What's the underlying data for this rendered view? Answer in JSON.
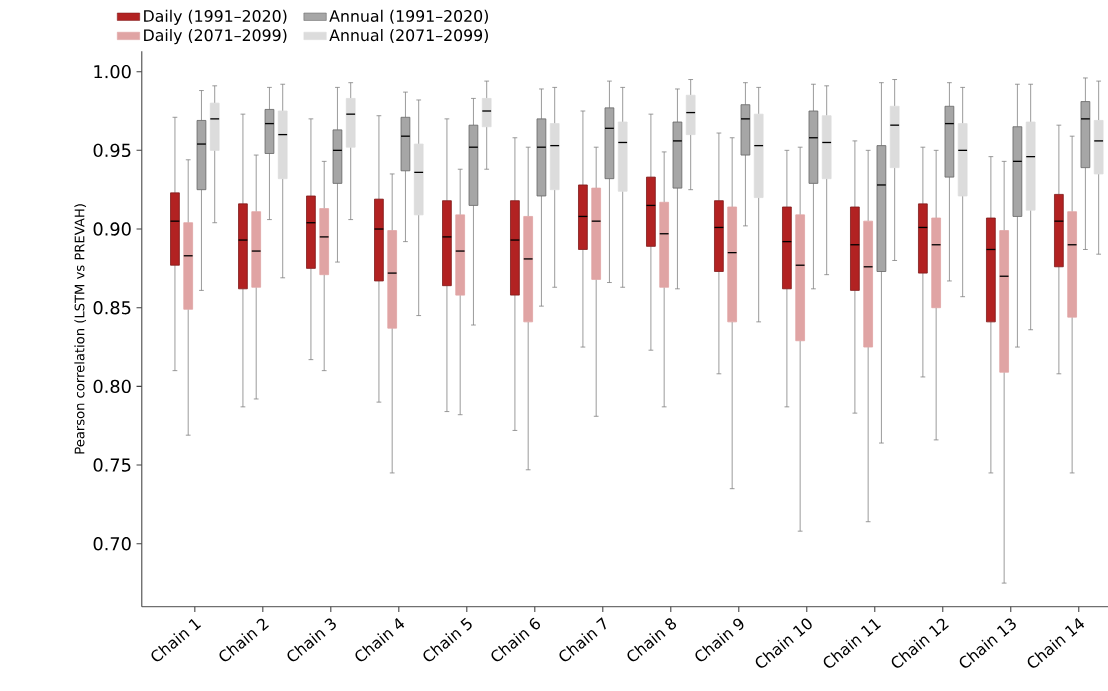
{
  "chart_data": {
    "type": "box",
    "ylabel": "Pearson correlation  (LSTM vs PREVAH)",
    "categories": [
      "Chain 1",
      "Chain 2",
      "Chain 3",
      "Chain 4",
      "Chain 5",
      "Chain 6",
      "Chain 7",
      "Chain 8",
      "Chain 9",
      "Chain 10",
      "Chain 11",
      "Chain 12",
      "Chain 13",
      "Chain 14"
    ],
    "ylim": [
      0.66,
      1.013
    ],
    "yticks": [
      {
        "value": 0.7,
        "label": "0.70"
      },
      {
        "value": 0.75,
        "label": "0.75"
      },
      {
        "value": 0.8,
        "label": "0.80"
      },
      {
        "value": 0.85,
        "label": "0.85"
      },
      {
        "value": 0.9,
        "label": "0.90"
      },
      {
        "value": 0.95,
        "label": "0.95"
      },
      {
        "value": 1.0,
        "label": "1.00"
      }
    ],
    "legend": "top left",
    "series": [
      {
        "name": "Daily (1991–2020)",
        "color": "#b22222",
        "boxes": [
          {
            "low": 0.81,
            "q1": 0.877,
            "median": 0.905,
            "q3": 0.923,
            "high": 0.971
          },
          {
            "low": 0.787,
            "q1": 0.862,
            "median": 0.893,
            "q3": 0.916,
            "high": 0.973
          },
          {
            "low": 0.817,
            "q1": 0.875,
            "median": 0.904,
            "q3": 0.921,
            "high": 0.97
          },
          {
            "low": 0.79,
            "q1": 0.867,
            "median": 0.9,
            "q3": 0.919,
            "high": 0.972
          },
          {
            "low": 0.784,
            "q1": 0.864,
            "median": 0.895,
            "q3": 0.918,
            "high": 0.97
          },
          {
            "low": 0.772,
            "q1": 0.858,
            "median": 0.893,
            "q3": 0.918,
            "high": 0.958
          },
          {
            "low": 0.825,
            "q1": 0.887,
            "median": 0.908,
            "q3": 0.928,
            "high": 0.975
          },
          {
            "low": 0.823,
            "q1": 0.889,
            "median": 0.915,
            "q3": 0.933,
            "high": 0.973
          },
          {
            "low": 0.808,
            "q1": 0.873,
            "median": 0.901,
            "q3": 0.918,
            "high": 0.961
          },
          {
            "low": 0.787,
            "q1": 0.862,
            "median": 0.892,
            "q3": 0.914,
            "high": 0.95
          },
          {
            "low": 0.783,
            "q1": 0.861,
            "median": 0.89,
            "q3": 0.914,
            "high": 0.956
          },
          {
            "low": 0.806,
            "q1": 0.872,
            "median": 0.901,
            "q3": 0.916,
            "high": 0.952
          },
          {
            "low": 0.745,
            "q1": 0.841,
            "median": 0.887,
            "q3": 0.907,
            "high": 0.946
          },
          {
            "low": 0.808,
            "q1": 0.876,
            "median": 0.905,
            "q3": 0.922,
            "high": 0.966
          }
        ]
      },
      {
        "name": "Daily (2071–2099)",
        "color": "#e0a4a4",
        "boxes": [
          {
            "low": 0.769,
            "q1": 0.849,
            "median": 0.883,
            "q3": 0.904,
            "high": 0.944
          },
          {
            "low": 0.792,
            "q1": 0.863,
            "median": 0.886,
            "q3": 0.911,
            "high": 0.947
          },
          {
            "low": 0.81,
            "q1": 0.871,
            "median": 0.895,
            "q3": 0.913,
            "high": 0.943
          },
          {
            "low": 0.745,
            "q1": 0.837,
            "median": 0.872,
            "q3": 0.899,
            "high": 0.935
          },
          {
            "low": 0.782,
            "q1": 0.858,
            "median": 0.886,
            "q3": 0.909,
            "high": 0.938
          },
          {
            "low": 0.747,
            "q1": 0.841,
            "median": 0.881,
            "q3": 0.908,
            "high": 0.952
          },
          {
            "low": 0.781,
            "q1": 0.868,
            "median": 0.905,
            "q3": 0.926,
            "high": 0.952
          },
          {
            "low": 0.787,
            "q1": 0.863,
            "median": 0.897,
            "q3": 0.917,
            "high": 0.949
          },
          {
            "low": 0.735,
            "q1": 0.841,
            "median": 0.885,
            "q3": 0.914,
            "high": 0.958
          },
          {
            "low": 0.708,
            "q1": 0.829,
            "median": 0.877,
            "q3": 0.909,
            "high": 0.952
          },
          {
            "low": 0.714,
            "q1": 0.825,
            "median": 0.876,
            "q3": 0.905,
            "high": 0.95
          },
          {
            "low": 0.766,
            "q1": 0.85,
            "median": 0.89,
            "q3": 0.907,
            "high": 0.95
          },
          {
            "low": 0.675,
            "q1": 0.809,
            "median": 0.87,
            "q3": 0.899,
            "high": 0.943
          },
          {
            "low": 0.745,
            "q1": 0.844,
            "median": 0.89,
            "q3": 0.911,
            "high": 0.959
          }
        ]
      },
      {
        "name": "Annual (1991–2020)",
        "color": "#a6a6a6",
        "boxes": [
          {
            "low": 0.861,
            "q1": 0.925,
            "median": 0.954,
            "q3": 0.969,
            "high": 0.988
          },
          {
            "low": 0.906,
            "q1": 0.948,
            "median": 0.967,
            "q3": 0.976,
            "high": 0.99
          },
          {
            "low": 0.879,
            "q1": 0.929,
            "median": 0.95,
            "q3": 0.963,
            "high": 0.99
          },
          {
            "low": 0.892,
            "q1": 0.937,
            "median": 0.959,
            "q3": 0.971,
            "high": 0.987
          },
          {
            "low": 0.839,
            "q1": 0.915,
            "median": 0.952,
            "q3": 0.966,
            "high": 0.983
          },
          {
            "low": 0.851,
            "q1": 0.921,
            "median": 0.952,
            "q3": 0.97,
            "high": 0.989
          },
          {
            "low": 0.866,
            "q1": 0.932,
            "median": 0.964,
            "q3": 0.977,
            "high": 0.994
          },
          {
            "low": 0.862,
            "q1": 0.926,
            "median": 0.956,
            "q3": 0.968,
            "high": 0.989
          },
          {
            "low": 0.902,
            "q1": 0.947,
            "median": 0.97,
            "q3": 0.979,
            "high": 0.993
          },
          {
            "low": 0.862,
            "q1": 0.929,
            "median": 0.958,
            "q3": 0.975,
            "high": 0.992
          },
          {
            "low": 0.764,
            "q1": 0.873,
            "median": 0.928,
            "q3": 0.953,
            "high": 0.993
          },
          {
            "low": 0.867,
            "q1": 0.933,
            "median": 0.967,
            "q3": 0.978,
            "high": 0.993
          },
          {
            "low": 0.825,
            "q1": 0.908,
            "median": 0.943,
            "q3": 0.965,
            "high": 0.992
          },
          {
            "low": 0.887,
            "q1": 0.939,
            "median": 0.97,
            "q3": 0.981,
            "high": 0.996
          }
        ]
      },
      {
        "name": "Annual (2071–2099)",
        "color": "#dcdcdc",
        "boxes": [
          {
            "low": 0.904,
            "q1": 0.95,
            "median": 0.97,
            "q3": 0.98,
            "high": 0.991
          },
          {
            "low": 0.869,
            "q1": 0.932,
            "median": 0.96,
            "q3": 0.975,
            "high": 0.992
          },
          {
            "low": 0.906,
            "q1": 0.952,
            "median": 0.973,
            "q3": 0.983,
            "high": 0.993
          },
          {
            "low": 0.845,
            "q1": 0.909,
            "median": 0.936,
            "q3": 0.954,
            "high": 0.982
          },
          {
            "low": 0.938,
            "q1": 0.965,
            "median": 0.975,
            "q3": 0.983,
            "high": 0.994
          },
          {
            "low": 0.863,
            "q1": 0.925,
            "median": 0.953,
            "q3": 0.967,
            "high": 0.99
          },
          {
            "low": 0.863,
            "q1": 0.924,
            "median": 0.955,
            "q3": 0.968,
            "high": 0.99
          },
          {
            "low": 0.925,
            "q1": 0.96,
            "median": 0.974,
            "q3": 0.985,
            "high": 0.995
          },
          {
            "low": 0.841,
            "q1": 0.92,
            "median": 0.953,
            "q3": 0.973,
            "high": 0.99
          },
          {
            "low": 0.871,
            "q1": 0.932,
            "median": 0.955,
            "q3": 0.972,
            "high": 0.991
          },
          {
            "low": 0.88,
            "q1": 0.939,
            "median": 0.966,
            "q3": 0.978,
            "high": 0.995
          },
          {
            "low": 0.857,
            "q1": 0.921,
            "median": 0.95,
            "q3": 0.967,
            "high": 0.99
          },
          {
            "low": 0.836,
            "q1": 0.912,
            "median": 0.946,
            "q3": 0.968,
            "high": 0.992
          },
          {
            "low": 0.884,
            "q1": 0.935,
            "median": 0.956,
            "q3": 0.969,
            "high": 0.994
          }
        ]
      }
    ]
  }
}
